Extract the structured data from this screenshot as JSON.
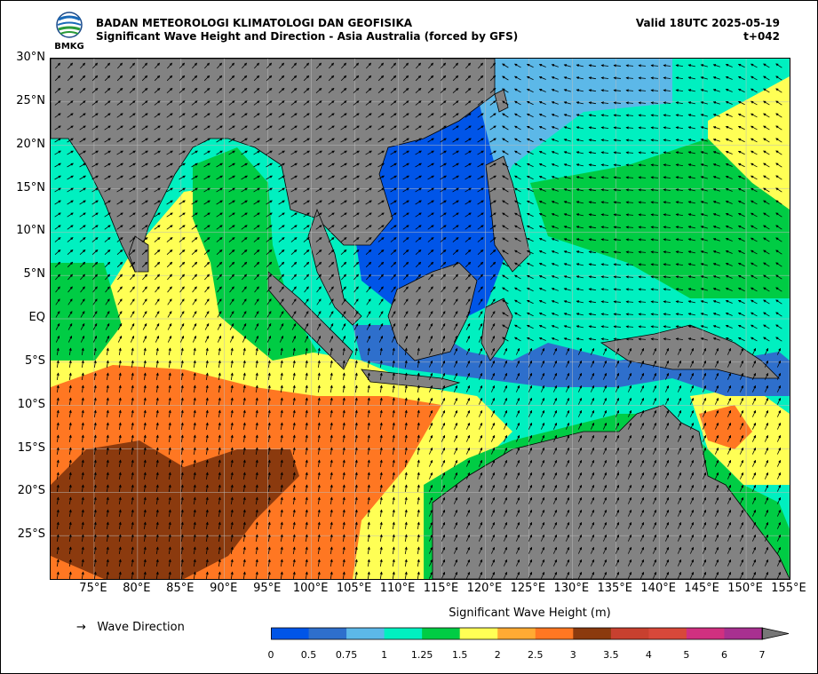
{
  "header": {
    "org": "BADAN METEOROLOGI KLIMATOLOGI DAN GEOFISIKA",
    "subtitle": "Significant Wave Height and Direction - Asia Australia (forced by GFS)",
    "valid": "Valid 18UTC 2025-05-19",
    "lead": "t+042",
    "logo_text": "BMKG"
  },
  "axes": {
    "lat_labels": [
      "30°N",
      "25°N",
      "20°N",
      "15°N",
      "10°N",
      "5°N",
      "EQ",
      "5°S",
      "10°S",
      "15°S",
      "20°S",
      "25°S"
    ],
    "lon_labels": [
      "75°E",
      "80°E",
      "85°E",
      "90°E",
      "95°E",
      "100°E",
      "105°E",
      "110°E",
      "115°E",
      "120°E",
      "125°E",
      "130°E",
      "135°E",
      "140°E",
      "145°E",
      "150°E",
      "155°E"
    ],
    "lon_range": [
      70,
      155
    ],
    "lat_range": [
      -30,
      30
    ],
    "grid": true
  },
  "legend": {
    "direction_label": "Wave Direction",
    "colorbar_title": "Significant Wave Height (m)",
    "ticks": [
      "0",
      "0.5",
      "0.75",
      "1",
      "1.25",
      "1.5",
      "2",
      "2.5",
      "3",
      "3.5",
      "4",
      "5",
      "6",
      "7"
    ],
    "colors": [
      "#0055e8",
      "#2e6fcc",
      "#5cb8e8",
      "#00f0c0",
      "#00cc44",
      "#ffff55",
      "#ffaa33",
      "#ff7722",
      "#8b3a0e",
      "#c8402f",
      "#d8483a",
      "#d03080",
      "#a83090"
    ],
    "extend": "max"
  },
  "colors": {
    "land": "#828282",
    "coast": "#000000",
    "arrow": "#000000"
  }
}
